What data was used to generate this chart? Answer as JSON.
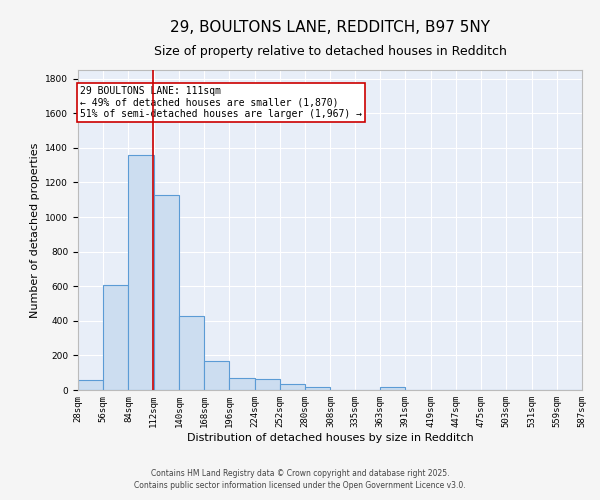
{
  "title1": "29, BOULTONS LANE, REDDITCH, B97 5NY",
  "title2": "Size of property relative to detached houses in Redditch",
  "xlabel": "Distribution of detached houses by size in Redditch",
  "ylabel": "Number of detached properties",
  "bin_edges": [
    28,
    56,
    84,
    112,
    140,
    168,
    196,
    224,
    252,
    280,
    308,
    335,
    363,
    391,
    419,
    447,
    475,
    503,
    531,
    559,
    587
  ],
  "bar_heights": [
    60,
    605,
    1360,
    1130,
    430,
    170,
    70,
    65,
    35,
    15,
    0,
    0,
    15,
    0,
    0,
    0,
    0,
    0,
    0,
    0
  ],
  "bar_color": "#ccddf0",
  "bar_edge_color": "#5b9bd5",
  "background_color": "#e8eef8",
  "grid_color": "#ffffff",
  "fig_background": "#f5f5f5",
  "vline_x": 111,
  "vline_color": "#cc0000",
  "ylim": [
    0,
    1850
  ],
  "yticks": [
    0,
    200,
    400,
    600,
    800,
    1000,
    1200,
    1400,
    1600,
    1800
  ],
  "annotation_text": "29 BOULTONS LANE: 111sqm\n← 49% of detached houses are smaller (1,870)\n51% of semi-detached houses are larger (1,967) →",
  "footer1": "Contains HM Land Registry data © Crown copyright and database right 2025.",
  "footer2": "Contains public sector information licensed under the Open Government Licence v3.0.",
  "title_fontsize": 11,
  "subtitle_fontsize": 9,
  "tick_label_fontsize": 6.5,
  "axis_label_fontsize": 8,
  "annotation_fontsize": 7
}
